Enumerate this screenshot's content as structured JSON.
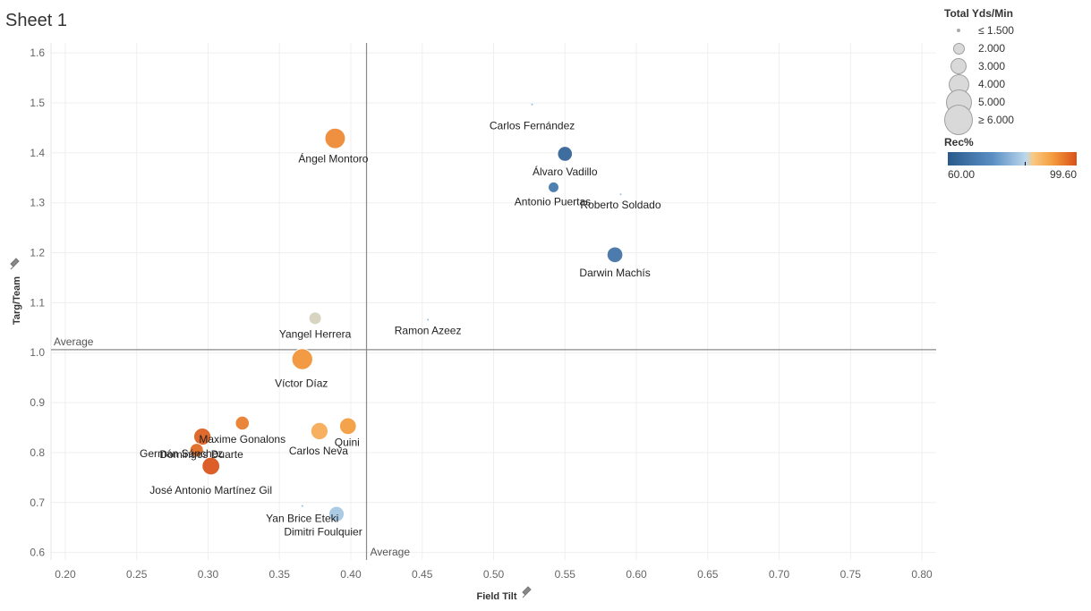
{
  "sheet": {
    "title": "Sheet 1"
  },
  "chart_data": {
    "type": "scatter",
    "xlabel": "Field Tilt",
    "ylabel": "Targ/Team",
    "xlim": [
      0.19,
      0.81
    ],
    "ylim": [
      0.585,
      1.62
    ],
    "x_ticks": [
      "0.20",
      "0.25",
      "0.30",
      "0.35",
      "0.40",
      "0.45",
      "0.50",
      "0.55",
      "0.60",
      "0.65",
      "0.70",
      "0.75",
      "0.80"
    ],
    "y_ticks": [
      "0.6",
      "0.7",
      "0.8",
      "0.9",
      "1.0",
      "1.1",
      "1.2",
      "1.3",
      "1.4",
      "1.5",
      "1.6"
    ],
    "grid": true,
    "reference_lines": {
      "x_average": 0.411,
      "y_average": 1.006,
      "label": "Average"
    },
    "points": [
      {
        "name": "Carlos Fernández",
        "x": 0.527,
        "y": 1.497,
        "size": 1.0,
        "rec": 80
      },
      {
        "name": "Ángel Montoro",
        "x": 0.389,
        "y": 1.429,
        "size": 3.9,
        "rec": 94
      },
      {
        "name": "Álvaro Vadillo",
        "x": 0.55,
        "y": 1.398,
        "size": 2.7,
        "rec": 63
      },
      {
        "name": "Antonio Puertas",
        "x": 0.542,
        "y": 1.331,
        "size": 1.8,
        "rec": 68
      },
      {
        "name": "Roberto Soldado",
        "x": 0.589,
        "y": 1.317,
        "size": 1.0,
        "rec": 80
      },
      {
        "name": "Darwin Machís",
        "x": 0.585,
        "y": 1.196,
        "size": 2.9,
        "rec": 67
      },
      {
        "name": "Yangel Herrera",
        "x": 0.375,
        "y": 1.069,
        "size": 2.2,
        "rec": 85
      },
      {
        "name": "Ramon Azeez",
        "x": 0.454,
        "y": 1.066,
        "size": 1.0,
        "rec": 80
      },
      {
        "name": "Víctor Díaz",
        "x": 0.366,
        "y": 0.987,
        "size": 4.0,
        "rec": 93
      },
      {
        "name": "Maxime Gonalons",
        "x": 0.324,
        "y": 0.859,
        "size": 2.5,
        "rec": 95
      },
      {
        "name": "Quini",
        "x": 0.398,
        "y": 0.853,
        "size": 3.1,
        "rec": 92
      },
      {
        "name": "Carlos Neva",
        "x": 0.378,
        "y": 0.843,
        "size": 3.2,
        "rec": 90
      },
      {
        "name": "Domingos Duarte",
        "x": 0.296,
        "y": 0.832,
        "size": 3.2,
        "rec": 98
      },
      {
        "name": "Germán Sánchez",
        "x": 0.292,
        "y": 0.805,
        "size": 2.4,
        "rec": 97
      },
      {
        "name": "José Antonio Martínez Gil",
        "x": 0.302,
        "y": 0.773,
        "size": 3.3,
        "rec": 99
      },
      {
        "name": "Yan Brice Eteki",
        "x": 0.366,
        "y": 0.693,
        "size": 1.0,
        "rec": 80
      },
      {
        "name": "Dimitri Foulquier",
        "x": 0.39,
        "y": 0.677,
        "size": 2.8,
        "rec": 82
      }
    ]
  },
  "legend": {
    "size_title": "Total Yds/Min",
    "size_items": [
      {
        "label": "≤ 1.500",
        "value": 1.0
      },
      {
        "label": "2.000",
        "value": 2.0
      },
      {
        "label": "3.000",
        "value": 3.0
      },
      {
        "label": "4.000",
        "value": 4.0
      },
      {
        "label": "5.000",
        "value": 5.0
      },
      {
        "label": "≥ 6.000",
        "value": 6.0
      }
    ],
    "color_title": "Rec%",
    "color_min": "60.00",
    "color_max": "99.60"
  }
}
